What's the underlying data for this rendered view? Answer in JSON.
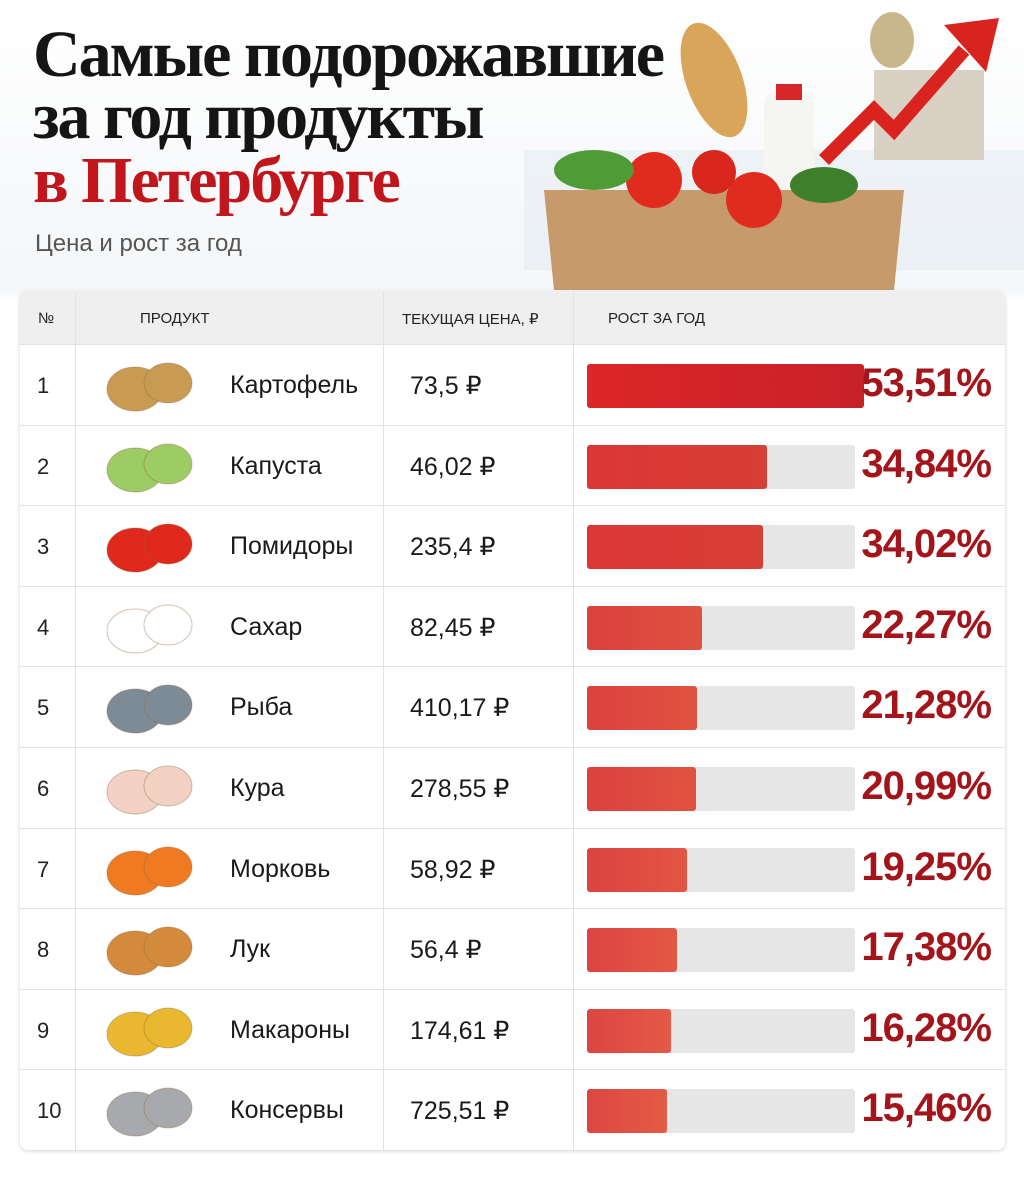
{
  "header": {
    "title_lines": [
      "Самые подорожавшие",
      "за год продукты",
      "в Петербурге"
    ],
    "subtitle": "Цена и рост за год"
  },
  "table": {
    "columns": [
      "№",
      "ПРОДУКТ",
      "ТЕКУЩАЯ ЦЕНА, ₽",
      "РОСТ ЗА ГОД"
    ],
    "rows": [
      {
        "rank": "1",
        "product": "Картофель",
        "price": "73,5 ₽",
        "growth": 53.51,
        "growth_label": "53,51%"
      },
      {
        "rank": "2",
        "product": "Капуста",
        "price": "46,02 ₽",
        "growth": 34.84,
        "growth_label": "34,84%"
      },
      {
        "rank": "3",
        "product": "Помидоры",
        "price": "235,4 ₽",
        "growth": 34.02,
        "growth_label": "34,02%"
      },
      {
        "rank": "4",
        "product": "Сахар",
        "price": "82,45 ₽",
        "growth": 22.27,
        "growth_label": "22,27%"
      },
      {
        "rank": "5",
        "product": "Рыба",
        "price": "410,17 ₽",
        "growth": 21.28,
        "growth_label": "21,28%"
      },
      {
        "rank": "6",
        "product": "Кура",
        "price": "278,55 ₽",
        "growth": 20.99,
        "growth_label": "20,99%"
      },
      {
        "rank": "7",
        "product": "Морковь",
        "price": "58,92 ₽",
        "growth": 19.25,
        "growth_label": "19,25%"
      },
      {
        "rank": "8",
        "product": "Лук",
        "price": "56,4 ₽",
        "growth": 17.38,
        "growth_label": "17,38%"
      },
      {
        "rank": "9",
        "product": "Макароны",
        "price": "174,61 ₽",
        "growth": 16.28,
        "growth_label": "16,28%"
      },
      {
        "rank": "10",
        "product": "Консервы",
        "price": "725,51 ₽",
        "growth": 15.46,
        "growth_label": "15,46%"
      }
    ]
  }
}
